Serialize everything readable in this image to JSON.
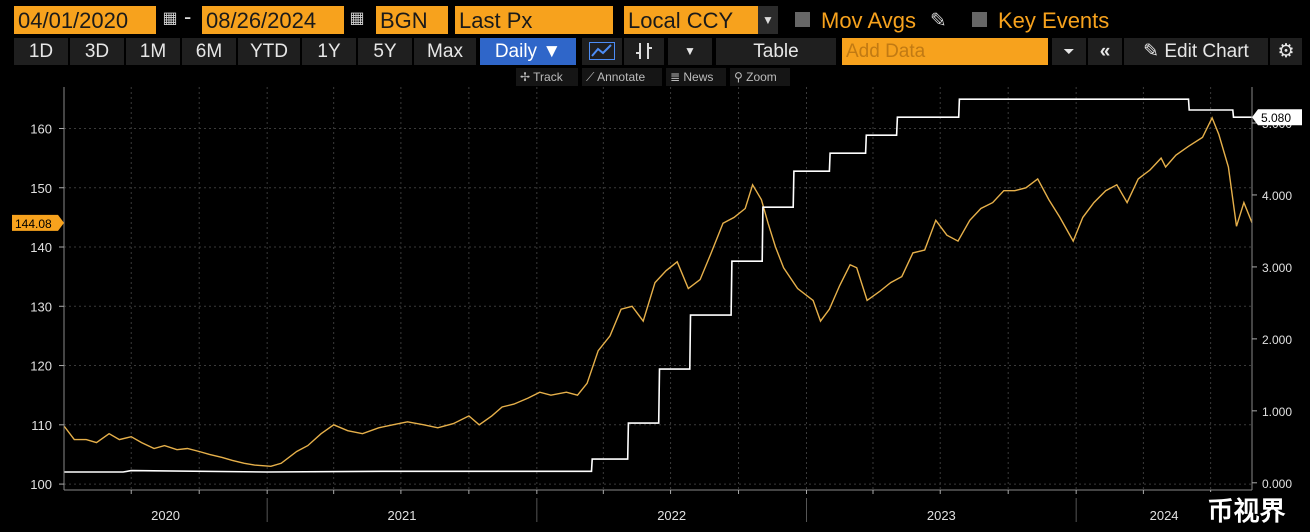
{
  "header": {
    "start_date": "04/01/2020",
    "end_date": "08/26/2024",
    "source": "BGN",
    "field": "Last Px",
    "currency": "Local CCY",
    "mov_avgs_label": "Mov Avgs",
    "key_events_label": "Key Events"
  },
  "toolbar": {
    "ranges": [
      "1D",
      "3D",
      "1M",
      "6M",
      "YTD",
      "1Y",
      "5Y",
      "Max"
    ],
    "frequency": "Daily ▼",
    "table_label": "Table",
    "add_data_placeholder": "Add Data",
    "edit_chart_label": "Edit Chart"
  },
  "mini_toolbar": {
    "track": "Track",
    "annotate": "Annotate",
    "news": "News",
    "zoom": "Zoom"
  },
  "watermark": "币视界",
  "chart_data": {
    "type": "line",
    "x_labels": [
      "2020",
      "2021",
      "2022",
      "2023",
      "2024"
    ],
    "left_axis": {
      "ticks": [
        100,
        110,
        120,
        130,
        140,
        150,
        160
      ],
      "range": [
        99,
        167
      ]
    },
    "right_axis": {
      "ticks": [
        "0.000",
        "1.000",
        "2.000",
        "3.000",
        "4.000",
        "5.000"
      ],
      "range": [
        -0.1,
        5.5
      ]
    },
    "grid": true,
    "last_value_left": "144.08",
    "last_value_right": "5.080",
    "colors": {
      "price": "#e6b04a",
      "rate": "#ffffff",
      "grid": "#3a3a3a",
      "background": "#000000"
    },
    "series": [
      {
        "axis": "left",
        "color": "#e6b04a",
        "points": [
          [
            "2020-04-01",
            109.8
          ],
          [
            "2020-04-15",
            107.5
          ],
          [
            "2020-05-01",
            107.5
          ],
          [
            "2020-05-15",
            107.0
          ],
          [
            "2020-06-01",
            108.5
          ],
          [
            "2020-06-15",
            107.5
          ],
          [
            "2020-07-01",
            108.0
          ],
          [
            "2020-07-15",
            107.0
          ],
          [
            "2020-08-01",
            106.0
          ],
          [
            "2020-08-15",
            106.5
          ],
          [
            "2020-09-01",
            105.8
          ],
          [
            "2020-09-15",
            106.0
          ],
          [
            "2020-10-01",
            105.5
          ],
          [
            "2020-10-15",
            105.0
          ],
          [
            "2020-11-01",
            104.5
          ],
          [
            "2020-11-15",
            104.0
          ],
          [
            "2020-12-01",
            103.5
          ],
          [
            "2020-12-15",
            103.2
          ],
          [
            "2021-01-06",
            103.0
          ],
          [
            "2021-01-20",
            103.5
          ],
          [
            "2021-02-10",
            105.5
          ],
          [
            "2021-02-25",
            106.5
          ],
          [
            "2021-03-15",
            108.5
          ],
          [
            "2021-04-01",
            110.0
          ],
          [
            "2021-04-20",
            109.0
          ],
          [
            "2021-05-10",
            108.5
          ],
          [
            "2021-06-01",
            109.5
          ],
          [
            "2021-06-20",
            110.0
          ],
          [
            "2021-07-10",
            110.5
          ],
          [
            "2021-08-01",
            110.0
          ],
          [
            "2021-08-20",
            109.5
          ],
          [
            "2021-09-10",
            110.2
          ],
          [
            "2021-10-01",
            111.5
          ],
          [
            "2021-10-15",
            110.0
          ],
          [
            "2021-11-01",
            111.5
          ],
          [
            "2021-11-15",
            113.0
          ],
          [
            "2021-12-01",
            113.5
          ],
          [
            "2021-12-20",
            114.5
          ],
          [
            "2022-01-05",
            115.5
          ],
          [
            "2022-01-20",
            115.0
          ],
          [
            "2022-02-10",
            115.5
          ],
          [
            "2022-02-25",
            115.0
          ],
          [
            "2022-03-10",
            117.0
          ],
          [
            "2022-03-25",
            122.5
          ],
          [
            "2022-04-10",
            125.0
          ],
          [
            "2022-04-25",
            129.5
          ],
          [
            "2022-05-10",
            130.0
          ],
          [
            "2022-05-25",
            127.5
          ],
          [
            "2022-06-10",
            134.0
          ],
          [
            "2022-06-25",
            136.0
          ],
          [
            "2022-07-10",
            137.5
          ],
          [
            "2022-07-25",
            133.0
          ],
          [
            "2022-08-10",
            134.5
          ],
          [
            "2022-08-25",
            139.0
          ],
          [
            "2022-09-10",
            144.0
          ],
          [
            "2022-09-25",
            145.0
          ],
          [
            "2022-10-10",
            146.5
          ],
          [
            "2022-10-20",
            150.5
          ],
          [
            "2022-11-01",
            148.0
          ],
          [
            "2022-11-10",
            144.0
          ],
          [
            "2022-11-20",
            140.0
          ],
          [
            "2022-12-01",
            136.5
          ],
          [
            "2022-12-20",
            133.0
          ],
          [
            "2023-01-10",
            131.0
          ],
          [
            "2023-01-20",
            127.5
          ],
          [
            "2023-02-01",
            129.5
          ],
          [
            "2023-02-15",
            133.5
          ],
          [
            "2023-03-01",
            137.0
          ],
          [
            "2023-03-10",
            136.5
          ],
          [
            "2023-03-24",
            131.0
          ],
          [
            "2023-04-10",
            132.5
          ],
          [
            "2023-04-25",
            134.0
          ],
          [
            "2023-05-10",
            135.0
          ],
          [
            "2023-05-25",
            139.0
          ],
          [
            "2023-06-10",
            139.5
          ],
          [
            "2023-06-25",
            144.5
          ],
          [
            "2023-07-10",
            142.0
          ],
          [
            "2023-07-25",
            141.0
          ],
          [
            "2023-08-10",
            144.5
          ],
          [
            "2023-08-25",
            146.5
          ],
          [
            "2023-09-10",
            147.5
          ],
          [
            "2023-09-25",
            149.5
          ],
          [
            "2023-10-10",
            149.5
          ],
          [
            "2023-10-25",
            150.0
          ],
          [
            "2023-11-10",
            151.5
          ],
          [
            "2023-11-25",
            148.0
          ],
          [
            "2023-12-10",
            145.0
          ],
          [
            "2023-12-28",
            141.0
          ],
          [
            "2024-01-10",
            145.0
          ],
          [
            "2024-01-25",
            147.5
          ],
          [
            "2024-02-10",
            149.5
          ],
          [
            "2024-02-25",
            150.5
          ],
          [
            "2024-03-10",
            147.5
          ],
          [
            "2024-03-25",
            151.5
          ],
          [
            "2024-04-10",
            153.0
          ],
          [
            "2024-04-25",
            155.0
          ],
          [
            "2024-05-01",
            153.5
          ],
          [
            "2024-05-15",
            155.5
          ],
          [
            "2024-06-01",
            157.0
          ],
          [
            "2024-06-20",
            158.5
          ],
          [
            "2024-07-03",
            161.8
          ],
          [
            "2024-07-12",
            159.0
          ],
          [
            "2024-07-25",
            153.5
          ],
          [
            "2024-08-05",
            143.5
          ],
          [
            "2024-08-15",
            147.5
          ],
          [
            "2024-08-26",
            144.08
          ]
        ]
      },
      {
        "axis": "right",
        "color": "#ffffff",
        "points": [
          [
            "2020-04-01",
            0.15
          ],
          [
            "2020-06-20",
            0.15
          ],
          [
            "2020-07-01",
            0.17
          ],
          [
            "2020-12-31",
            0.15
          ],
          [
            "2021-06-15",
            0.16
          ],
          [
            "2021-12-31",
            0.16
          ],
          [
            "2022-03-16",
            0.16
          ],
          [
            "2022-03-17",
            0.33
          ],
          [
            "2022-05-04",
            0.33
          ],
          [
            "2022-05-05",
            0.83
          ],
          [
            "2022-06-15",
            0.83
          ],
          [
            "2022-06-16",
            1.58
          ],
          [
            "2022-07-27",
            1.58
          ],
          [
            "2022-07-28",
            2.33
          ],
          [
            "2022-09-21",
            2.33
          ],
          [
            "2022-09-22",
            3.08
          ],
          [
            "2022-11-02",
            3.08
          ],
          [
            "2022-11-03",
            3.83
          ],
          [
            "2022-12-14",
            3.83
          ],
          [
            "2022-12-15",
            4.33
          ],
          [
            "2023-02-01",
            4.33
          ],
          [
            "2023-02-02",
            4.58
          ],
          [
            "2023-03-22",
            4.58
          ],
          [
            "2023-03-23",
            4.83
          ],
          [
            "2023-05-03",
            4.83
          ],
          [
            "2023-05-04",
            5.08
          ],
          [
            "2023-07-26",
            5.08
          ],
          [
            "2023-07-27",
            5.33
          ],
          [
            "2024-06-01",
            5.33
          ],
          [
            "2024-06-02",
            5.18
          ],
          [
            "2024-07-31",
            5.18
          ],
          [
            "2024-08-01",
            5.08
          ],
          [
            "2024-08-26",
            5.08
          ]
        ]
      }
    ]
  }
}
